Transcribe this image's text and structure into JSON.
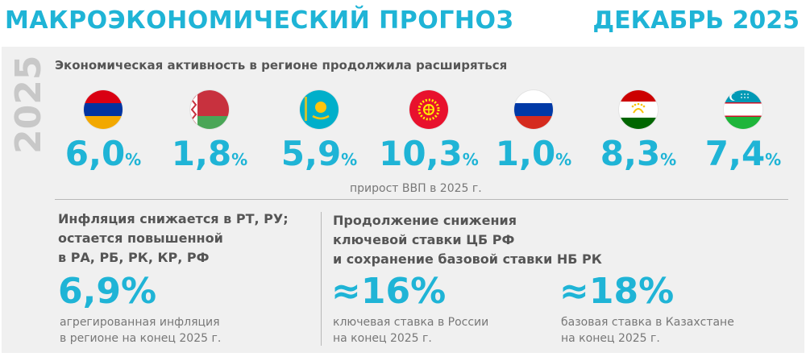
{
  "header": {
    "title": "МАКРОЭКОНОМИЧЕСКИЙ ПРОГНОЗ",
    "date": "ДЕКАБРЬ 2025"
  },
  "year_label": "2025",
  "activity": {
    "heading": "Экономическая активность в регионе продолжила расширяться",
    "caption": "прирост ВВП в 2025 г.",
    "countries": [
      {
        "flag": "armenia-flag",
        "value": "6,0",
        "unit": "%"
      },
      {
        "flag": "belarus-flag",
        "value": "1,8",
        "unit": "%"
      },
      {
        "flag": "kazakhstan-flag",
        "value": "5,9",
        "unit": "%"
      },
      {
        "flag": "kyrgyzstan-flag",
        "value": "10,3",
        "unit": "%"
      },
      {
        "flag": "russia-flag",
        "value": "1,0",
        "unit": "%"
      },
      {
        "flag": "tajikistan-flag",
        "value": "8,3",
        "unit": "%"
      },
      {
        "flag": "uzbekistan-flag",
        "value": "7,4",
        "unit": "%"
      }
    ]
  },
  "inflation": {
    "heading_lines": [
      "Инфляция снижается в РТ, РУ;",
      "остается повышенной",
      "в РА, РБ, РК, КР, РФ"
    ],
    "value": "6,9%",
    "caption_lines": [
      "агрегированная инфляция",
      "в регионе на конец 2025 г."
    ]
  },
  "rates": {
    "heading_lines": [
      "Продолжение снижения",
      "ключевой ставки ЦБ РФ",
      "и сохранение базовой ставки НБ РК"
    ],
    "russia": {
      "value": "≈16%",
      "caption_lines": [
        "ключевая ставка в России",
        "на конец 2025 г."
      ]
    },
    "kazakhstan": {
      "value": "≈18%",
      "caption_lines": [
        "базовая ставка в Казахстане",
        "на конец 2025 г."
      ]
    }
  },
  "colors": {
    "accent": "#1fb4d6",
    "panel": "#f0f0f0",
    "heading_text": "#555555",
    "caption_text": "#777777",
    "year_text": "#c8c8c8"
  }
}
